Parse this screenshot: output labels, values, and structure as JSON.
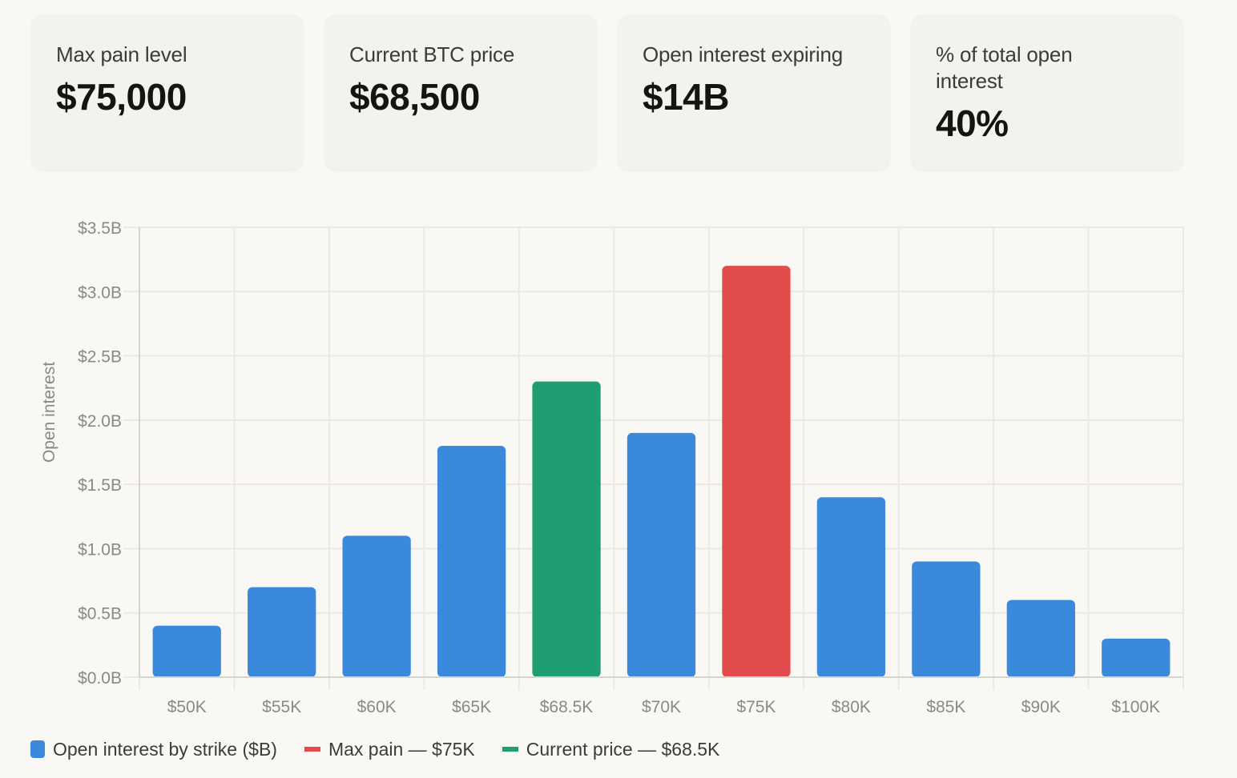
{
  "metrics": [
    {
      "label": "Max pain level",
      "value": "$75,000"
    },
    {
      "label": "Current BTC price",
      "value": "$68,500"
    },
    {
      "label": "Open interest expiring",
      "value": "$14B"
    },
    {
      "label": "% of total open interest",
      "value": "40%"
    }
  ],
  "colors": {
    "default_bar": "#3a89dd",
    "max_pain": "#e34c4c",
    "current_price": "#1f9e74",
    "grid": "#ebe9e3",
    "axis": "#d6d4ce"
  },
  "chart_data": {
    "type": "bar",
    "title": "",
    "xlabel": "",
    "ylabel": "Open interest",
    "categories": [
      "$50K",
      "$55K",
      "$60K",
      "$65K",
      "$68.5K",
      "$70K",
      "$75K",
      "$80K",
      "$85K",
      "$90K",
      "$100K"
    ],
    "series": [
      {
        "name": "Open interest by strike ($B)",
        "values": [
          0.4,
          0.7,
          1.1,
          1.8,
          2.3,
          1.9,
          3.2,
          1.4,
          0.9,
          0.6,
          0.3
        ]
      }
    ],
    "highlights": {
      "$75K": "max_pain",
      "$68.5K": "current_price"
    },
    "ylim": [
      0,
      3.5
    ],
    "yticks": [
      0,
      0.5,
      1.0,
      1.5,
      2.0,
      2.5,
      3.0,
      3.5
    ],
    "ytick_labels": [
      "$0.0B",
      "$0.5B",
      "$1.0B",
      "$1.5B",
      "$2.0B",
      "$2.5B",
      "$3.0B",
      "$3.5B"
    ],
    "grid": true,
    "legend_position": "bottom-left",
    "legend": [
      {
        "label": "Open interest by strike ($B)",
        "color_key": "default_bar",
        "shape": "square"
      },
      {
        "label": "Max pain — $75K",
        "color_key": "max_pain",
        "shape": "line"
      },
      {
        "label": "Current price — $68.5K",
        "color_key": "current_price",
        "shape": "line"
      }
    ]
  }
}
